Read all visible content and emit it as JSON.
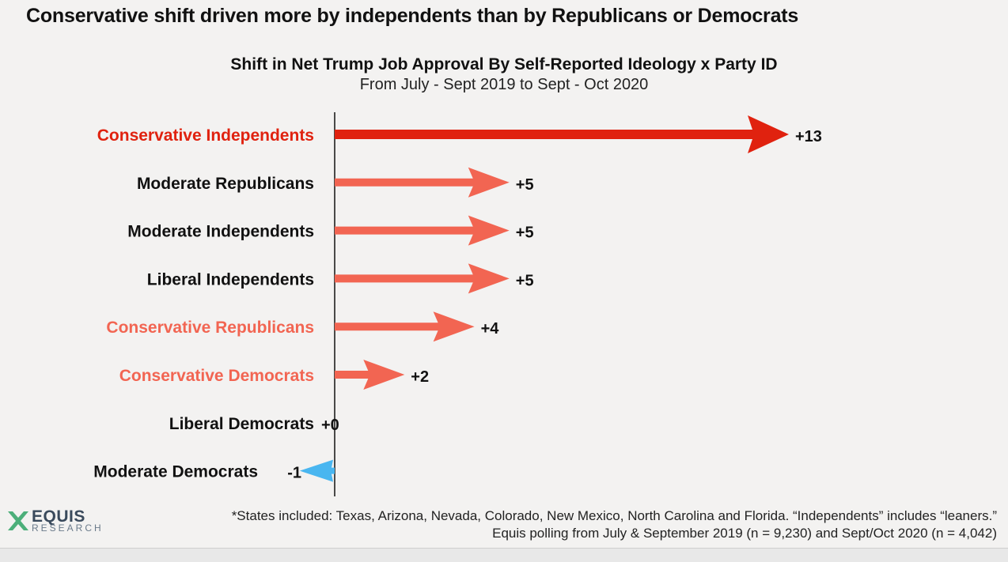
{
  "headline": "Conservative shift driven more by independents than by Republicans or Democrats",
  "logo": {
    "name": "EQUIS",
    "sub": "RESEARCH",
    "icon": "x-logo-icon",
    "color": "#3a4a5c",
    "accent": "#4caf7a"
  },
  "footnote": {
    "line1": "*States included: Texas, Arizona, Nevada, Colorado, New Mexico, North Carolina and Florida. “Independents” includes “leaners.”",
    "line2": "Equis polling from July & September 2019 (n = 9,230) and Sept/Oct 2020  (n = 4,042)"
  },
  "colors": {
    "dark_red": "#e0220f",
    "salmon": "#f26552",
    "blue": "#49b6f0",
    "black": "#111111"
  },
  "chart_data": {
    "type": "bar",
    "title": "Shift in Net Trump Job Approval By Self-Reported Ideology x Party ID",
    "subtitle": "From July - Sept 2019 to Sept - Oct 2020",
    "xlim": [
      -1,
      13
    ],
    "categories": [
      "Conservative Independents",
      "Moderate Republicans",
      "Moderate Independents",
      "Liberal Independents",
      "Conservative Republicans",
      "Conservative Democrats",
      "Liberal Democrats",
      "Moderate Democrats"
    ],
    "values": [
      13,
      5,
      5,
      5,
      4,
      2,
      0,
      -1
    ],
    "value_labels": [
      "+13",
      "+5",
      "+5",
      "+5",
      "+4",
      "+2",
      "+0",
      "-1"
    ],
    "label_colors": [
      "#e0220f",
      "#111111",
      "#111111",
      "#111111",
      "#f26552",
      "#f26552",
      "#111111",
      "#111111"
    ],
    "arrow_colors": [
      "#e0220f",
      "#f26552",
      "#f26552",
      "#f26552",
      "#f26552",
      "#f26552",
      "#111111",
      "#49b6f0"
    ],
    "grid": false,
    "legend": "none"
  }
}
